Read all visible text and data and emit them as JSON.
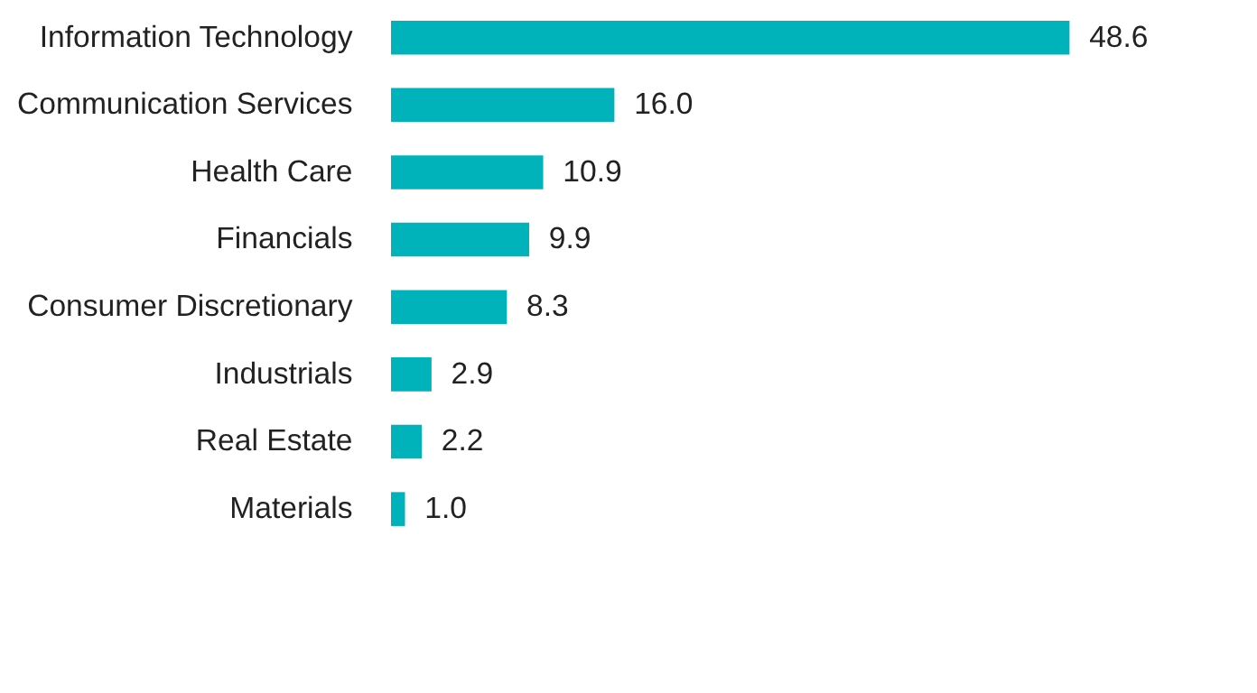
{
  "chart_data": {
    "type": "bar",
    "orientation": "horizontal",
    "categories": [
      "Information Technology",
      "Communication Services",
      "Health Care",
      "Financials",
      "Consumer Discretionary",
      "Industrials",
      "Real Estate",
      "Materials"
    ],
    "values": [
      48.6,
      16.0,
      10.9,
      9.9,
      8.3,
      2.9,
      2.2,
      1.0
    ],
    "value_labels": [
      "48.6",
      "16.0",
      "10.9",
      "9.9",
      "8.3",
      "2.9",
      "2.2",
      "1.0"
    ],
    "color": "#00b2b9",
    "grid": false,
    "tick_labels": "y"
  }
}
